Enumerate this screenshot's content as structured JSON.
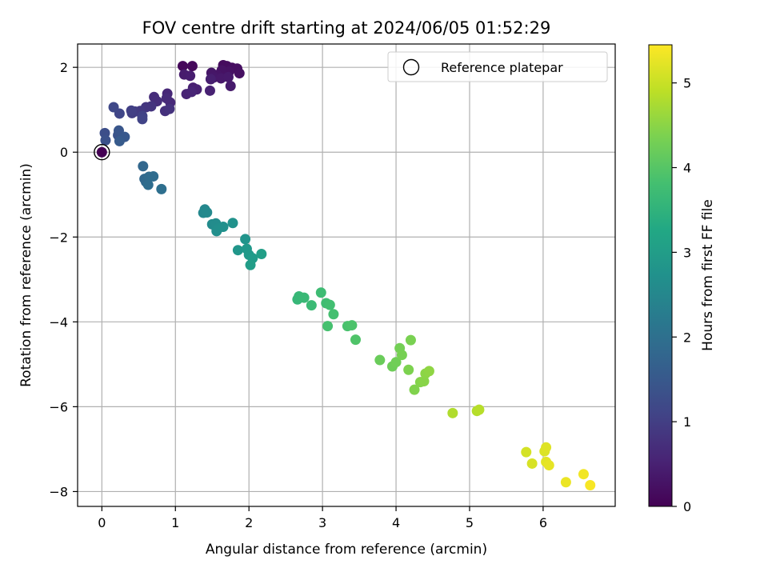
{
  "chart_data": {
    "type": "scatter",
    "title": "FOV centre drift starting at 2024/06/05 01:52:29",
    "xlabel": "Angular distance from reference (arcmin)",
    "ylabel": "Rotation from reference (arcmin)",
    "xlim": [
      -0.33,
      6.98
    ],
    "ylim": [
      -8.35,
      2.55
    ],
    "xticks": [
      0,
      1,
      2,
      3,
      4,
      5,
      6
    ],
    "yticks": [
      -8,
      -6,
      -4,
      -2,
      0,
      2
    ],
    "xtick_labels": [
      "0",
      "1",
      "2",
      "3",
      "4",
      "5",
      "6"
    ],
    "ytick_labels": [
      "−8",
      "−6",
      "−4",
      "−2",
      "0",
      "2"
    ],
    "grid": true,
    "legend": {
      "position": "top-right",
      "label": "Reference platepar"
    },
    "colorbar": {
      "label": "Hours from first FF file",
      "colormap": "viridis",
      "range": [
        0,
        5.45
      ],
      "ticks": [
        0,
        1,
        2,
        3,
        4,
        5
      ],
      "tick_labels": [
        "0",
        "1",
        "2",
        "3",
        "4",
        "5"
      ]
    },
    "reference_point": {
      "x": 0,
      "y": 0
    },
    "points": [
      {
        "x": 1.1,
        "y": 2.03,
        "t": 0.1
      },
      {
        "x": 1.23,
        "y": 2.03,
        "t": 0.12
      },
      {
        "x": 1.65,
        "y": 2.05,
        "t": 0.15
      },
      {
        "x": 1.7,
        "y": 2.03,
        "t": 0.17
      },
      {
        "x": 1.77,
        "y": 1.99,
        "t": 0.19
      },
      {
        "x": 1.84,
        "y": 1.97,
        "t": 0.21
      },
      {
        "x": 1.87,
        "y": 1.86,
        "t": 0.23
      },
      {
        "x": 1.73,
        "y": 1.9,
        "t": 0.25
      },
      {
        "x": 1.63,
        "y": 1.93,
        "t": 0.27
      },
      {
        "x": 1.57,
        "y": 1.82,
        "t": 0.3
      },
      {
        "x": 1.49,
        "y": 1.87,
        "t": 0.32
      },
      {
        "x": 1.52,
        "y": 1.76,
        "t": 0.34
      },
      {
        "x": 1.62,
        "y": 1.74,
        "t": 0.36
      },
      {
        "x": 1.72,
        "y": 1.77,
        "t": 0.38
      },
      {
        "x": 1.75,
        "y": 1.56,
        "t": 0.4
      },
      {
        "x": 1.12,
        "y": 1.83,
        "t": 0.42
      },
      {
        "x": 1.2,
        "y": 1.8,
        "t": 0.44
      },
      {
        "x": 1.48,
        "y": 1.72,
        "t": 0.46
      },
      {
        "x": 1.24,
        "y": 1.52,
        "t": 0.48
      },
      {
        "x": 1.29,
        "y": 1.48,
        "t": 0.5
      },
      {
        "x": 1.47,
        "y": 1.45,
        "t": 0.52
      },
      {
        "x": 1.15,
        "y": 1.37,
        "t": 0.55
      },
      {
        "x": 1.22,
        "y": 1.42,
        "t": 0.57
      },
      {
        "x": 0.89,
        "y": 1.38,
        "t": 0.6
      },
      {
        "x": 0.93,
        "y": 1.17,
        "t": 0.63
      },
      {
        "x": 0.88,
        "y": 1.27,
        "t": 0.66
      },
      {
        "x": 0.71,
        "y": 1.3,
        "t": 0.69
      },
      {
        "x": 0.75,
        "y": 1.2,
        "t": 0.72
      },
      {
        "x": 0.86,
        "y": 0.97,
        "t": 0.75
      },
      {
        "x": 0.92,
        "y": 1.02,
        "t": 0.78
      },
      {
        "x": 0.67,
        "y": 1.08,
        "t": 0.82
      },
      {
        "x": 0.6,
        "y": 1.06,
        "t": 0.86
      },
      {
        "x": 0.52,
        "y": 0.97,
        "t": 0.9
      },
      {
        "x": 0.45,
        "y": 0.96,
        "t": 0.94
      },
      {
        "x": 0.41,
        "y": 0.92,
        "t": 0.98
      },
      {
        "x": 0.4,
        "y": 0.98,
        "t": 1.02
      },
      {
        "x": 0.55,
        "y": 0.85,
        "t": 1.06
      },
      {
        "x": 0.55,
        "y": 0.78,
        "t": 1.1
      },
      {
        "x": 0.24,
        "y": 0.91,
        "t": 1.14
      },
      {
        "x": 0.16,
        "y": 1.06,
        "t": 1.18
      },
      {
        "x": 0.04,
        "y": 0.45,
        "t": 1.3
      },
      {
        "x": 0.05,
        "y": 0.28,
        "t": 1.35
      },
      {
        "x": 0.22,
        "y": 0.4,
        "t": 1.4
      },
      {
        "x": 0.23,
        "y": 0.51,
        "t": 1.45
      },
      {
        "x": 0.31,
        "y": 0.36,
        "t": 1.5
      },
      {
        "x": 0.24,
        "y": 0.26,
        "t": 1.55
      },
      {
        "x": 0.56,
        "y": -0.33,
        "t": 1.8
      },
      {
        "x": 0.58,
        "y": -0.63,
        "t": 1.83
      },
      {
        "x": 0.6,
        "y": -0.7,
        "t": 1.86
      },
      {
        "x": 0.64,
        "y": -0.58,
        "t": 1.89
      },
      {
        "x": 0.7,
        "y": -0.57,
        "t": 1.92
      },
      {
        "x": 0.63,
        "y": -0.77,
        "t": 1.95
      },
      {
        "x": 0.81,
        "y": -0.87,
        "t": 1.98
      },
      {
        "x": 1.4,
        "y": -1.35,
        "t": 2.5
      },
      {
        "x": 1.38,
        "y": -1.43,
        "t": 2.53
      },
      {
        "x": 1.43,
        "y": -1.42,
        "t": 2.56
      },
      {
        "x": 1.5,
        "y": -1.7,
        "t": 2.59
      },
      {
        "x": 1.55,
        "y": -1.68,
        "t": 2.62
      },
      {
        "x": 1.58,
        "y": -1.8,
        "t": 2.65
      },
      {
        "x": 1.56,
        "y": -1.86,
        "t": 2.68
      },
      {
        "x": 1.65,
        "y": -1.76,
        "t": 2.71
      },
      {
        "x": 1.78,
        "y": -1.67,
        "t": 2.74
      },
      {
        "x": 1.95,
        "y": -2.05,
        "t": 2.8
      },
      {
        "x": 1.85,
        "y": -2.31,
        "t": 2.84
      },
      {
        "x": 1.97,
        "y": -2.28,
        "t": 2.88
      },
      {
        "x": 2.0,
        "y": -2.42,
        "t": 2.92
      },
      {
        "x": 2.05,
        "y": -2.5,
        "t": 2.96
      },
      {
        "x": 2.02,
        "y": -2.66,
        "t": 3.0
      },
      {
        "x": 2.17,
        "y": -2.4,
        "t": 3.04
      },
      {
        "x": 2.66,
        "y": -3.47,
        "t": 3.6
      },
      {
        "x": 2.68,
        "y": -3.4,
        "t": 3.63
      },
      {
        "x": 2.75,
        "y": -3.43,
        "t": 3.66
      },
      {
        "x": 2.85,
        "y": -3.61,
        "t": 3.69
      },
      {
        "x": 2.98,
        "y": -3.31,
        "t": 3.72
      },
      {
        "x": 3.05,
        "y": -3.56,
        "t": 3.75
      },
      {
        "x": 3.1,
        "y": -3.6,
        "t": 3.78
      },
      {
        "x": 3.15,
        "y": -3.82,
        "t": 3.81
      },
      {
        "x": 3.07,
        "y": -4.1,
        "t": 3.84
      },
      {
        "x": 3.34,
        "y": -4.1,
        "t": 3.87
      },
      {
        "x": 3.4,
        "y": -4.08,
        "t": 3.9
      },
      {
        "x": 3.45,
        "y": -4.42,
        "t": 3.93
      },
      {
        "x": 3.78,
        "y": -4.9,
        "t": 4.2
      },
      {
        "x": 3.95,
        "y": -5.05,
        "t": 4.23
      },
      {
        "x": 4.0,
        "y": -4.95,
        "t": 4.26
      },
      {
        "x": 4.05,
        "y": -4.62,
        "t": 4.29
      },
      {
        "x": 4.08,
        "y": -4.78,
        "t": 4.32
      },
      {
        "x": 4.2,
        "y": -4.43,
        "t": 4.35
      },
      {
        "x": 4.17,
        "y": -5.13,
        "t": 4.38
      },
      {
        "x": 4.25,
        "y": -5.6,
        "t": 4.41
      },
      {
        "x": 4.33,
        "y": -5.42,
        "t": 4.44
      },
      {
        "x": 4.38,
        "y": -5.4,
        "t": 4.47
      },
      {
        "x": 4.4,
        "y": -5.22,
        "t": 4.5
      },
      {
        "x": 4.45,
        "y": -5.16,
        "t": 4.53
      },
      {
        "x": 4.77,
        "y": -6.15,
        "t": 4.8
      },
      {
        "x": 5.1,
        "y": -6.1,
        "t": 4.83
      },
      {
        "x": 5.13,
        "y": -6.07,
        "t": 4.86
      },
      {
        "x": 5.77,
        "y": -7.07,
        "t": 5.1
      },
      {
        "x": 5.85,
        "y": -7.34,
        "t": 5.13
      },
      {
        "x": 6.02,
        "y": -7.05,
        "t": 5.16
      },
      {
        "x": 6.04,
        "y": -6.96,
        "t": 5.19
      },
      {
        "x": 6.04,
        "y": -7.3,
        "t": 5.22
      },
      {
        "x": 6.08,
        "y": -7.38,
        "t": 5.25
      },
      {
        "x": 6.31,
        "y": -7.78,
        "t": 5.3
      },
      {
        "x": 6.55,
        "y": -7.59,
        "t": 5.35
      },
      {
        "x": 6.64,
        "y": -7.85,
        "t": 5.4
      }
    ]
  }
}
